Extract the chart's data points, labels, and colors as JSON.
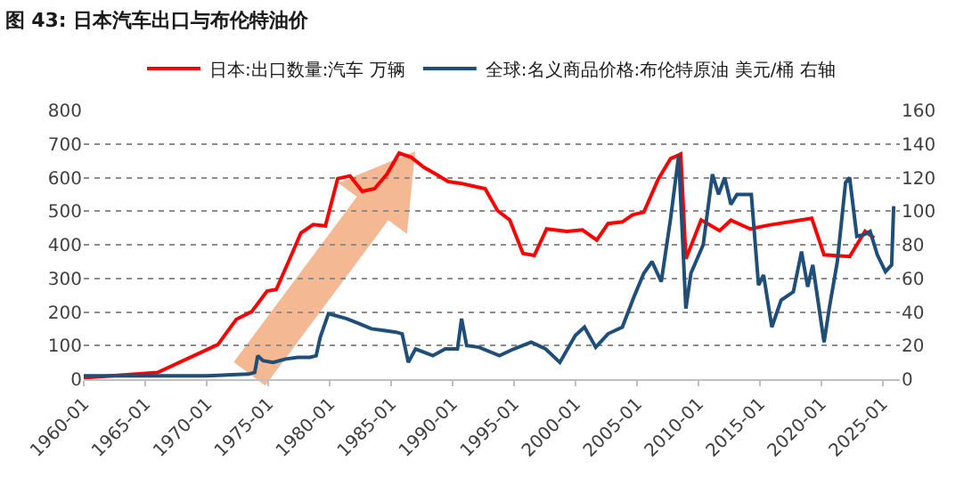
{
  "chart_data": {
    "type": "line",
    "title": "图 43: 日本汽车出口与布伦特油价",
    "xlim": [
      "1960-01",
      "2026-06"
    ],
    "xticks": [
      "1960-01",
      "1965-01",
      "1970-01",
      "1975-01",
      "1980-01",
      "1985-01",
      "1990-01",
      "1995-01",
      "2000-01",
      "2005-01",
      "2010-01",
      "2015-01",
      "2020-01",
      "2025-01"
    ],
    "ylim": [
      0,
      800
    ],
    "yticks": [
      0,
      100,
      200,
      300,
      400,
      500,
      600,
      700,
      800
    ],
    "y2lim": [
      0,
      160
    ],
    "y2ticks": [
      0,
      20,
      40,
      60,
      80,
      100,
      120,
      140,
      160
    ],
    "grid": "y",
    "legend": "top",
    "marker": "none",
    "line_style": "solid",
    "series": [
      {
        "name": "日本:出口数量:汽车 万辆",
        "color": "#ff0000",
        "x": [
          "1960-01",
          "1966-01",
          "1970-12",
          "1972-06",
          "1973-09",
          "1974-12",
          "1975-09",
          "1976-12",
          "1977-09",
          "1978-09",
          "1979-09",
          "1980-09",
          "1981-09",
          "1982-09",
          "1983-09",
          "1984-09",
          "1985-09",
          "1986-09",
          "1987-09",
          "1988-09",
          "1989-09",
          "1990-09",
          "1991-09",
          "1992-09",
          "1993-09",
          "1994-09",
          "1995-10",
          "1996-09",
          "1997-09",
          "1999-05",
          "2000-08",
          "2001-10",
          "2002-09",
          "2003-11",
          "2004-09",
          "2005-08",
          "2006-10",
          "2007-10",
          "2008-08",
          "2009-01",
          "2010-04",
          "2011-10",
          "2012-09",
          "2014-04",
          "2015-09",
          "2019-04",
          "2020-04",
          "2022-05",
          "2023-08",
          "2024-05"
        ],
        "values": [
          4,
          20,
          103,
          178,
          201,
          262,
          267,
          371,
          435,
          460,
          456,
          597,
          605,
          559,
          567,
          610,
          673,
          660,
          631,
          610,
          588,
          583,
          575,
          567,
          502,
          474,
          374,
          368,
          447,
          440,
          444,
          414,
          463,
          468,
          489,
          497,
          595,
          656,
          670,
          358,
          474,
          442,
          473,
          447,
          458,
          479,
          370,
          365,
          440,
          420
        ]
      },
      {
        "name": "全球:名义商品价格:布伦特原油 美元/桶 右轴",
        "color": "#1f4e79",
        "axis": "y2",
        "x": [
          "1960-01",
          "1965-01",
          "1970-01",
          "1973-06",
          "1973-12",
          "1974-03",
          "1974-08",
          "1975-06",
          "1976-06",
          "1977-06",
          "1978-06",
          "1978-12",
          "1979-04",
          "1979-12",
          "1980-06",
          "1981-06",
          "1982-06",
          "1983-06",
          "1984-06",
          "1985-06",
          "1985-12",
          "1986-06",
          "1987-01",
          "1988-06",
          "1989-06",
          "1990-06",
          "1990-10",
          "1991-03",
          "1992-03",
          "1993-11",
          "1995-01",
          "1996-06",
          "1997-08",
          "1998-10",
          "2000-01",
          "2000-10",
          "2001-09",
          "2002-09",
          "2003-11",
          "2004-11",
          "2005-08",
          "2006-04",
          "2007-01",
          "2007-10",
          "2008-06",
          "2009-01",
          "2009-06",
          "2010-06",
          "2011-03",
          "2011-09",
          "2012-03",
          "2012-09",
          "2013-03",
          "2014-05",
          "2014-12",
          "2015-05",
          "2016-01",
          "2016-10",
          "2017-10",
          "2018-06",
          "2018-12",
          "2019-05",
          "2020-04",
          "2020-09",
          "2021-05",
          "2022-01",
          "2022-05",
          "2022-12",
          "2023-07",
          "2024-01",
          "2024-08",
          "2025-04",
          "2025-10",
          "2025-12"
        ],
        "values": [
          2,
          2,
          2,
          3,
          4,
          14,
          11,
          10,
          12,
          13,
          13,
          14,
          25,
          39,
          38,
          36,
          33,
          30,
          29,
          28,
          27,
          10,
          18,
          14,
          18,
          18,
          36,
          20,
          19,
          14,
          18,
          22,
          18,
          10,
          26,
          31,
          19,
          27,
          31,
          50,
          63,
          70,
          58,
          95,
          133,
          42,
          63,
          80,
          122,
          110,
          120,
          104,
          110,
          110,
          56,
          62,
          31,
          47,
          52,
          76,
          55,
          68,
          22,
          42,
          70,
          117,
          120,
          85,
          86,
          88,
          74,
          64,
          68,
          103
        ]
      }
    ]
  }
}
